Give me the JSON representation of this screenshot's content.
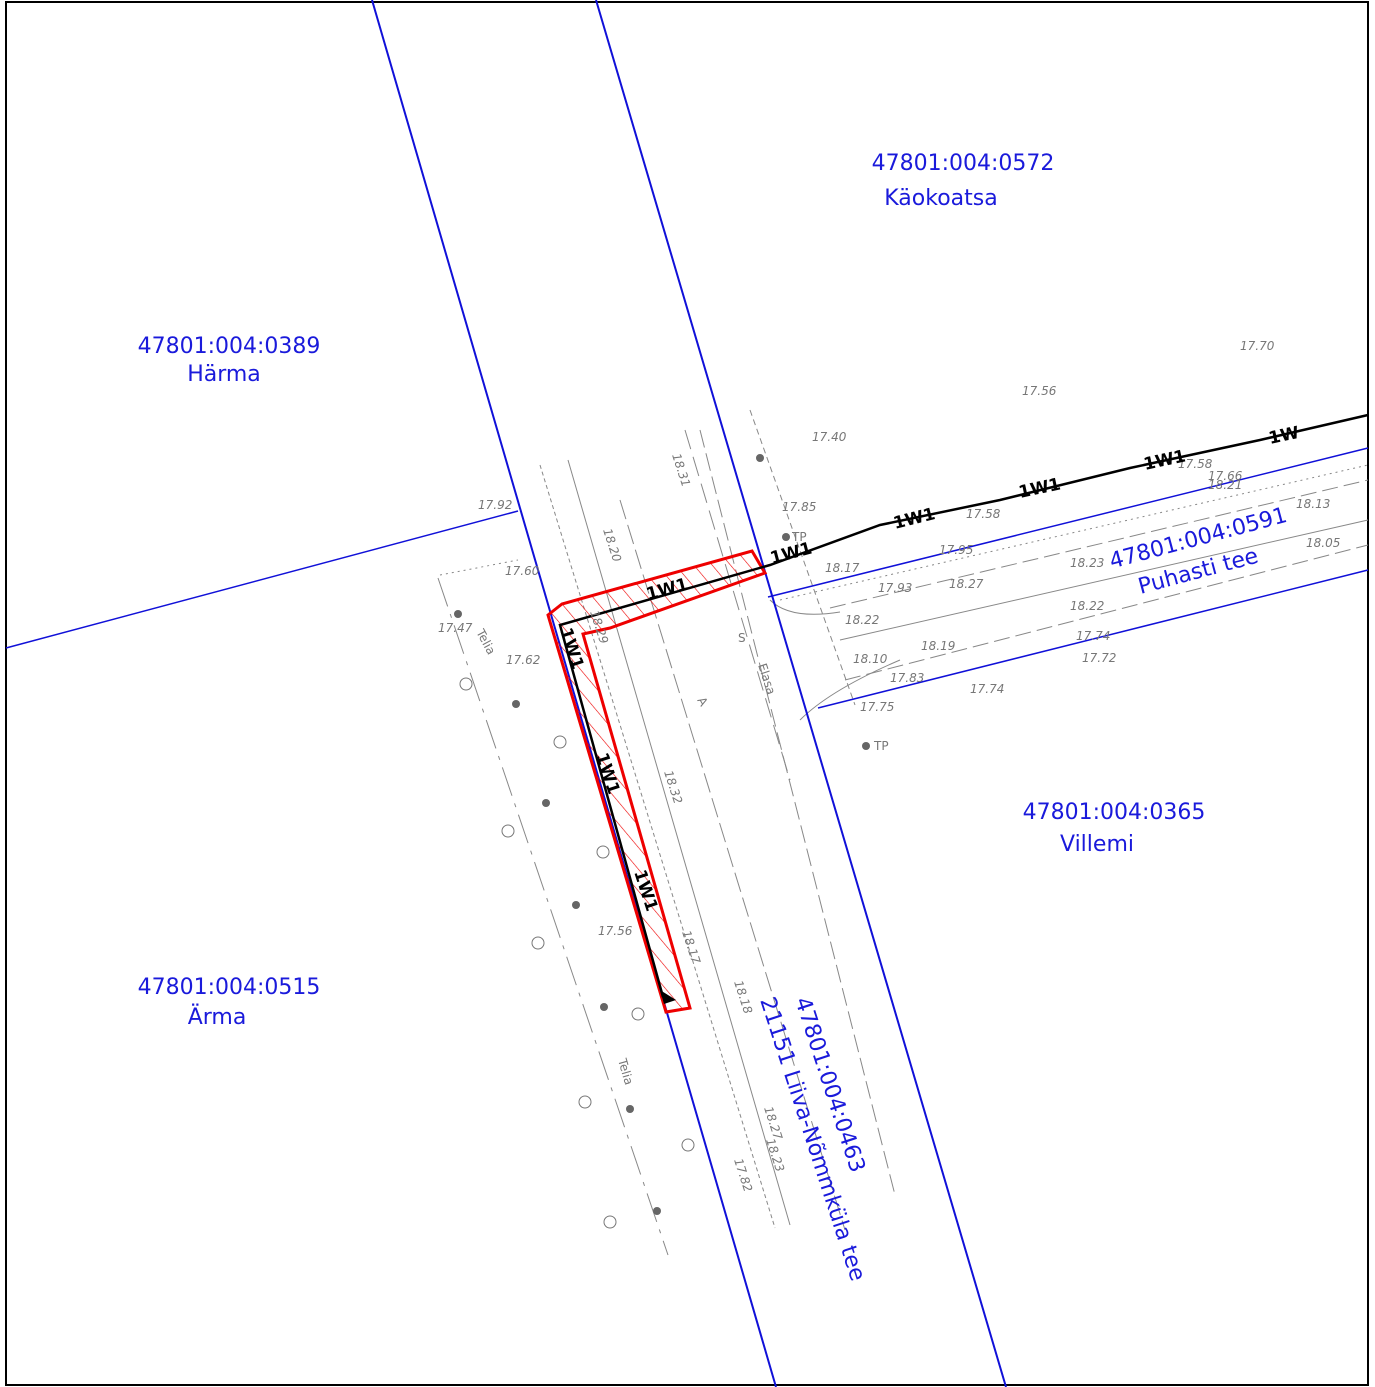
{
  "parcels": [
    {
      "id": "47801:004:0572",
      "name": "Käokoatsa"
    },
    {
      "id": "47801:004:0389",
      "name": "Härma"
    },
    {
      "id": "47801:004:0365",
      "name": "Villemi"
    },
    {
      "id": "47801:004:0515",
      "name": "Ärma"
    },
    {
      "id": "47801:004:0591",
      "name": "Puhasti tee"
    },
    {
      "id": "47801:004:0463",
      "name": "21151 Liiva-Nõmmküla tee"
    }
  ],
  "elevations": [
    "17.92",
    "17.60",
    "17.47",
    "17.62",
    "17.56",
    "17.70",
    "17.40",
    "17.58",
    "17.66",
    "17.85",
    "17.58",
    "17.95",
    "18.13",
    "18.23",
    "18.21",
    "18.05",
    "18.27",
    "17.93",
    "18.17",
    "18.22",
    "18.10",
    "18.19",
    "18.22",
    "17.74",
    "17.72",
    "17.83",
    "17.74",
    "17.75",
    "17.56",
    "18.20",
    "18.31",
    "18.32",
    "18.17",
    "18.18",
    "18.27",
    "18.23",
    "17.82",
    "18.29"
  ],
  "pipe_labels": [
    "1W1",
    "1W1",
    "1W1",
    "1W1",
    "1W1",
    "1W",
    "1W1",
    "1W1",
    "1W1"
  ],
  "other_labels": [
    "Telia",
    "Telia",
    "Elasa",
    "TP",
    "TP",
    "A",
    "S"
  ]
}
